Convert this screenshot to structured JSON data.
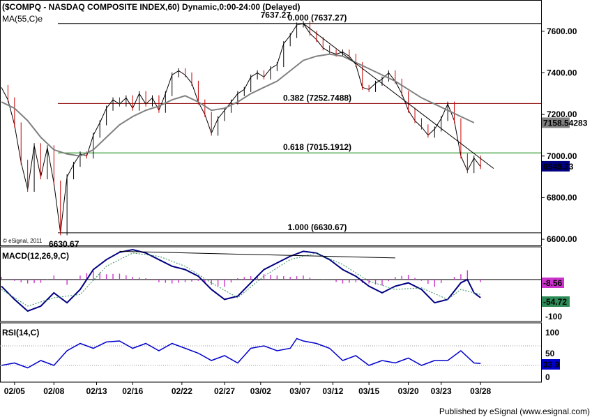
{
  "header": {
    "title": "($COMPQ - NASDAQ COMPOSITE INDEX,60) Dynamic,0:00-24:00 (Delayed)",
    "ma_label": "MA(55,C)e",
    "copyright": "© eSignal, 2011",
    "publisher": "Published by eSignal (www.esignal.com)"
  },
  "colors": {
    "price": "#000000",
    "ma": "#808080",
    "fib_382": "#8b0000",
    "fib_618": "#008000",
    "fib_text_382": "#8b0000",
    "fib_text_618": "#008000",
    "macd_line": "#000080",
    "macd_hist": "#cc33cc",
    "rsi_line": "#0000cc",
    "ma_badge": "#808080",
    "price_badge": "#000080",
    "macd_badge": "#cc33cc",
    "signal_badge": "#2e8b57",
    "rsi_badge": "#0000cc"
  },
  "chart_data": [
    {
      "type": "line",
      "name": "price",
      "series_name": "$COMPQ",
      "x_ticks": [
        "02/05",
        "02/08",
        "02/13",
        "02/16",
        "02/22",
        "02/27",
        "03/02",
        "03/07",
        "03/12",
        "03/15",
        "03/20",
        "03/23",
        "03/28"
      ],
      "y_ticks": [
        "7600.00",
        "7400.00",
        "7200.00",
        "7000.00",
        "6800.00",
        "6600.00"
      ],
      "ylim": [
        6570,
        7700
      ],
      "points": [
        [
          0,
          7330
        ],
        [
          2,
          7270
        ],
        [
          4,
          7150
        ],
        [
          6,
          6970
        ],
        [
          8,
          6840
        ],
        [
          10,
          7050
        ],
        [
          12,
          6900
        ],
        [
          14,
          7040
        ],
        [
          16,
          6870
        ],
        [
          18,
          6631
        ],
        [
          20,
          6900
        ],
        [
          22,
          6960
        ],
        [
          24,
          7010
        ],
        [
          26,
          7000
        ],
        [
          28,
          7100
        ],
        [
          30,
          7160
        ],
        [
          32,
          7230
        ],
        [
          34,
          7270
        ],
        [
          36,
          7250
        ],
        [
          38,
          7280
        ],
        [
          40,
          7230
        ],
        [
          42,
          7300
        ],
        [
          44,
          7250
        ],
        [
          46,
          7280
        ],
        [
          48,
          7220
        ],
        [
          50,
          7300
        ],
        [
          52,
          7390
        ],
        [
          54,
          7410
        ],
        [
          56,
          7390
        ],
        [
          58,
          7350
        ],
        [
          60,
          7260
        ],
        [
          62,
          7200
        ],
        [
          64,
          7110
        ],
        [
          66,
          7180
        ],
        [
          68,
          7220
        ],
        [
          70,
          7260
        ],
        [
          72,
          7300
        ],
        [
          74,
          7320
        ],
        [
          76,
          7380
        ],
        [
          78,
          7400
        ],
        [
          80,
          7380
        ],
        [
          82,
          7420
        ],
        [
          84,
          7440
        ],
        [
          86,
          7540
        ],
        [
          88,
          7580
        ],
        [
          90,
          7630
        ],
        [
          92,
          7637
        ],
        [
          94,
          7590
        ],
        [
          96,
          7560
        ],
        [
          98,
          7520
        ],
        [
          100,
          7500
        ],
        [
          102,
          7490
        ],
        [
          104,
          7500
        ],
        [
          106,
          7480
        ],
        [
          108,
          7440
        ],
        [
          110,
          7330
        ],
        [
          112,
          7320
        ],
        [
          114,
          7350
        ],
        [
          116,
          7370
        ],
        [
          118,
          7400
        ],
        [
          120,
          7360
        ],
        [
          122,
          7300
        ],
        [
          124,
          7220
        ],
        [
          126,
          7170
        ],
        [
          128,
          7140
        ],
        [
          130,
          7100
        ],
        [
          132,
          7130
        ],
        [
          134,
          7180
        ],
        [
          136,
          7250
        ],
        [
          138,
          7170
        ],
        [
          140,
          7000
        ],
        [
          142,
          6930
        ],
        [
          144,
          6990
        ],
        [
          146,
          6949
        ]
      ],
      "ma": [
        [
          0,
          7260
        ],
        [
          4,
          7230
        ],
        [
          8,
          7170
        ],
        [
          12,
          7090
        ],
        [
          16,
          7030
        ],
        [
          20,
          7010
        ],
        [
          24,
          7000
        ],
        [
          28,
          7030
        ],
        [
          32,
          7090
        ],
        [
          36,
          7150
        ],
        [
          40,
          7190
        ],
        [
          44,
          7220
        ],
        [
          48,
          7240
        ],
        [
          52,
          7270
        ],
        [
          56,
          7290
        ],
        [
          60,
          7260
        ],
        [
          64,
          7220
        ],
        [
          68,
          7230
        ],
        [
          72,
          7260
        ],
        [
          76,
          7300
        ],
        [
          80,
          7330
        ],
        [
          84,
          7360
        ],
        [
          88,
          7410
        ],
        [
          92,
          7460
        ],
        [
          96,
          7480
        ],
        [
          100,
          7490
        ],
        [
          104,
          7480
        ],
        [
          108,
          7450
        ],
        [
          112,
          7420
        ],
        [
          116,
          7390
        ],
        [
          120,
          7360
        ],
        [
          124,
          7320
        ],
        [
          128,
          7280
        ],
        [
          132,
          7250
        ],
        [
          136,
          7220
        ],
        [
          140,
          7190
        ],
        [
          144,
          7160
        ]
      ],
      "ma_value": "7158.54283",
      "last_value": "6949.23",
      "fib_levels": [
        {
          "label": "0.000 (7637.27)",
          "value": 7637.27
        },
        {
          "label": "0.382 (7252.7488)",
          "value": 7252.7488
        },
        {
          "label": "0.618 (7015.1912)",
          "value": 7015.1912
        },
        {
          "label": "1.000 (6630.67)",
          "value": 6630.67
        }
      ],
      "high_label": "7637.27",
      "low_label": "6630.67",
      "trendline": {
        "from": [
          92,
          7637.27
        ],
        "to": [
          150,
          6940
        ]
      }
    },
    {
      "type": "line",
      "name": "macd",
      "title": "MACD(12,26,9,C)",
      "y_ticks": [
        "-100"
      ],
      "ylim": [
        -120,
        90
      ],
      "macd": [
        [
          0,
          -20
        ],
        [
          4,
          -60
        ],
        [
          8,
          -95
        ],
        [
          12,
          -80
        ],
        [
          16,
          -40
        ],
        [
          20,
          -70
        ],
        [
          24,
          -30
        ],
        [
          28,
          30
        ],
        [
          32,
          60
        ],
        [
          36,
          82
        ],
        [
          40,
          90
        ],
        [
          44,
          80
        ],
        [
          48,
          60
        ],
        [
          52,
          40
        ],
        [
          56,
          30
        ],
        [
          60,
          10
        ],
        [
          64,
          -30
        ],
        [
          68,
          -60
        ],
        [
          72,
          -50
        ],
        [
          76,
          -10
        ],
        [
          80,
          30
        ],
        [
          84,
          50
        ],
        [
          88,
          70
        ],
        [
          92,
          85
        ],
        [
          96,
          80
        ],
        [
          100,
          60
        ],
        [
          104,
          30
        ],
        [
          108,
          10
        ],
        [
          112,
          -20
        ],
        [
          116,
          -40
        ],
        [
          120,
          -20
        ],
        [
          124,
          -10
        ],
        [
          128,
          -30
        ],
        [
          132,
          -70
        ],
        [
          136,
          -60
        ],
        [
          140,
          -10
        ],
        [
          142,
          0
        ],
        [
          144,
          -40
        ],
        [
          146,
          -54.72
        ]
      ],
      "signal": [
        [
          0,
          -30
        ],
        [
          8,
          -80
        ],
        [
          16,
          -55
        ],
        [
          24,
          -45
        ],
        [
          32,
          40
        ],
        [
          40,
          80
        ],
        [
          48,
          70
        ],
        [
          56,
          40
        ],
        [
          64,
          -10
        ],
        [
          72,
          -55
        ],
        [
          80,
          10
        ],
        [
          88,
          60
        ],
        [
          96,
          80
        ],
        [
          104,
          45
        ],
        [
          112,
          -5
        ],
        [
          120,
          -30
        ],
        [
          128,
          -25
        ],
        [
          136,
          -60
        ],
        [
          140,
          -30
        ],
        [
          146,
          -45
        ]
      ],
      "histogram_last": "-8.56",
      "macd_last": "-54.72",
      "divergence_line": {
        "from": [
          36,
          85
        ],
        "to": [
          120,
          65
        ]
      }
    },
    {
      "type": "line",
      "name": "rsi",
      "title": "RSI(14,C)",
      "y_ticks": [
        "100",
        "50",
        "0"
      ],
      "ylim": [
        0,
        100
      ],
      "levels": [
        70,
        30
      ],
      "points": [
        [
          0,
          30
        ],
        [
          4,
          35
        ],
        [
          8,
          25
        ],
        [
          12,
          40
        ],
        [
          16,
          30
        ],
        [
          20,
          60
        ],
        [
          24,
          75
        ],
        [
          28,
          65
        ],
        [
          32,
          78
        ],
        [
          36,
          80
        ],
        [
          40,
          65
        ],
        [
          44,
          75
        ],
        [
          48,
          60
        ],
        [
          52,
          75
        ],
        [
          56,
          65
        ],
        [
          60,
          55
        ],
        [
          64,
          40
        ],
        [
          68,
          50
        ],
        [
          72,
          35
        ],
        [
          76,
          65
        ],
        [
          80,
          70
        ],
        [
          84,
          60
        ],
        [
          88,
          65
        ],
        [
          90,
          85
        ],
        [
          92,
          80
        ],
        [
          96,
          75
        ],
        [
          100,
          65
        ],
        [
          104,
          40
        ],
        [
          108,
          50
        ],
        [
          112,
          30
        ],
        [
          116,
          40
        ],
        [
          120,
          35
        ],
        [
          124,
          45
        ],
        [
          128,
          30
        ],
        [
          132,
          40
        ],
        [
          136,
          40
        ],
        [
          140,
          60
        ],
        [
          144,
          35
        ],
        [
          146,
          33.9
        ]
      ],
      "last_value": "33.9"
    }
  ]
}
